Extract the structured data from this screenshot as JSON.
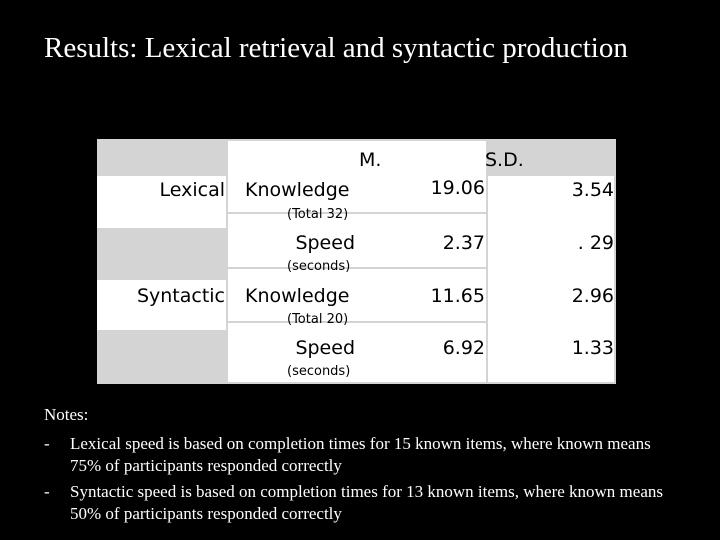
{
  "title": "Results: Lexical retrieval and syntactic production",
  "table": {
    "headers": {
      "mean": "M.",
      "sd": "S.D."
    },
    "rows": [
      {
        "group": "Lexical",
        "measure": "Knowledge",
        "unit": "(Total 32)",
        "mean": "19.06",
        "sd": "3.54"
      },
      {
        "group": "",
        "measure": "Speed",
        "unit": "(seconds)",
        "mean": "2.37",
        "sd": ". 29"
      },
      {
        "group": "Syntactic",
        "measure": "Knowledge",
        "unit": "(Total 20)",
        "mean": "11.65",
        "sd": "2.96"
      },
      {
        "group": "",
        "measure": "Speed",
        "unit": "(seconds)",
        "mean": "6.92",
        "sd": "1.33"
      }
    ]
  },
  "notes": {
    "heading": "Notes:",
    "items": [
      {
        "bullet": "-",
        "text": "Lexical speed is based on completion times for 15  known items, where known means 75% of participants responded correctly"
      },
      {
        "bullet": "-",
        "text": "Syntactic speed is based on completion times for 13 known items, where known means 50% of participants responded correctly"
      }
    ]
  }
}
